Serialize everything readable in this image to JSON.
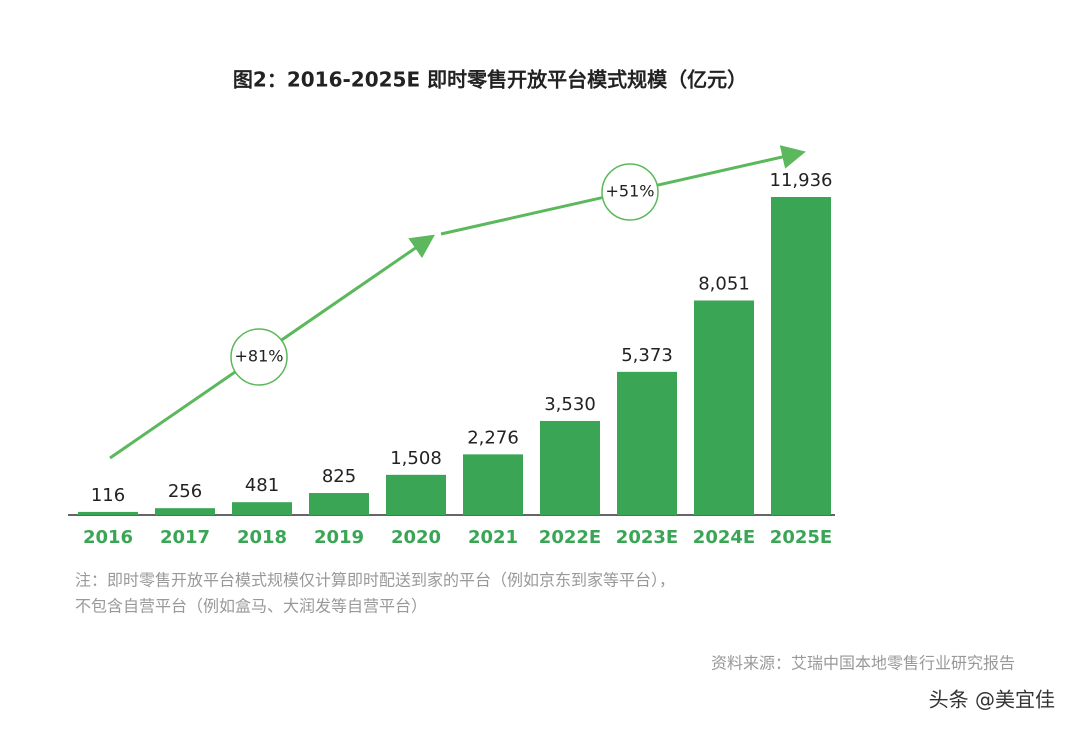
{
  "chart_data": {
    "type": "bar",
    "title": "图2：2016-2025E 即时零售开放平台模式规模（亿元）",
    "categories": [
      "2016",
      "2017",
      "2018",
      "2019",
      "2020",
      "2021",
      "2022E",
      "2023E",
      "2024E",
      "2025E"
    ],
    "values": [
      116,
      256,
      481,
      825,
      1508,
      2276,
      3530,
      5373,
      8051,
      11936
    ],
    "value_labels": [
      "116",
      "256",
      "481",
      "825",
      "1,508",
      "2,276",
      "3,530",
      "5,373",
      "8,051",
      "11,936"
    ],
    "color": "#3aa655",
    "annotations": [
      "+81%",
      "+51%"
    ],
    "note": [
      "注：即时零售开放平台模式规模仅计算即时配送到家的平台（例如京东到家等平台），",
      "不包含自营平台（例如盒马、大润发等自营平台）"
    ],
    "source": "资料来源：艾瑞中国本地零售行业研究报告",
    "watermark": "头条 @美宜佳"
  }
}
